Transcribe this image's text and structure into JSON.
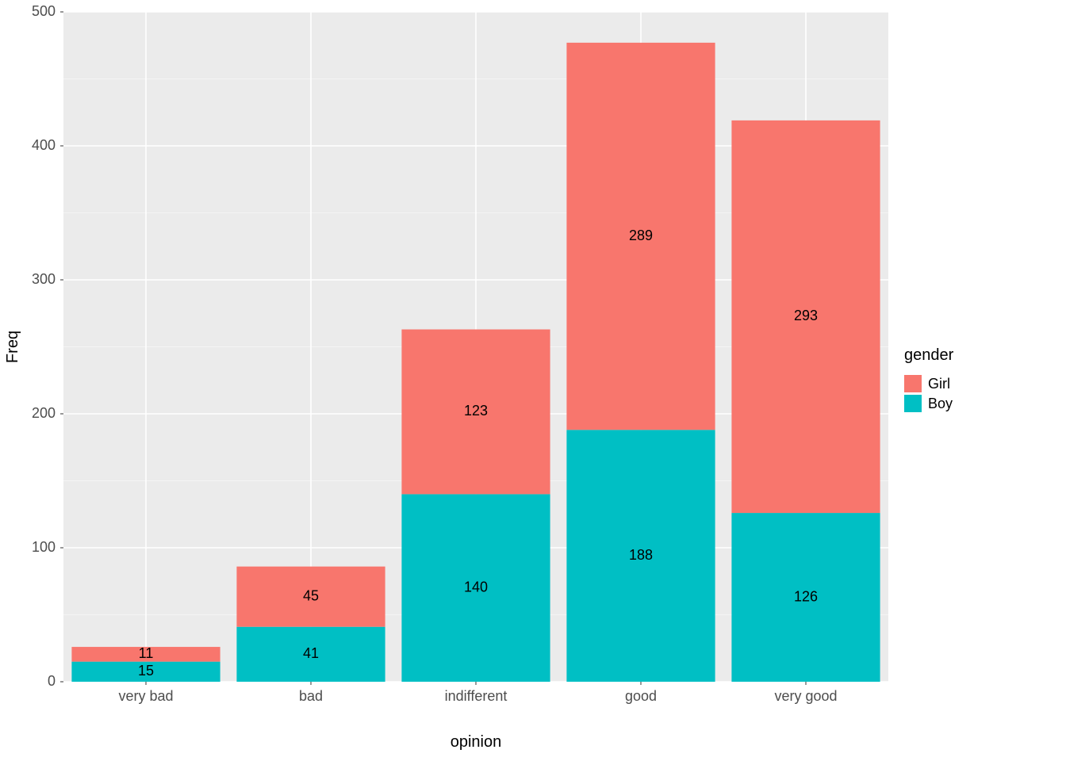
{
  "chart": {
    "type": "bar-stacked",
    "xlabel": "opinion",
    "ylabel": "Freq",
    "categories": [
      "very bad",
      "bad",
      "indifferent",
      "good",
      "very good"
    ],
    "series": [
      {
        "name": "Girl",
        "color": "#f8766d",
        "values": [
          11,
          45,
          123,
          289,
          293
        ]
      },
      {
        "name": "Boy",
        "color": "#00bfc4",
        "values": [
          15,
          41,
          140,
          188,
          126
        ]
      }
    ],
    "ylim": [
      0,
      500
    ],
    "yticks": [
      0,
      100,
      200,
      300,
      400,
      500
    ],
    "yminor": [
      50,
      150,
      250,
      350,
      450
    ],
    "panel_bg": "#ebebeb",
    "grid_major_color": "#ffffff",
    "grid_minor_color": "#f4f4f4",
    "axis_text_color": "#4d4d4d",
    "axis_title_color": "#000000",
    "tick_color": "#333333",
    "label_fontsize": 20,
    "tick_fontsize": 18,
    "value_fontsize": 18,
    "bar_width": 0.9,
    "plot_bg": "#ffffff"
  },
  "legend": {
    "title": "gender",
    "items": [
      {
        "label": "Girl",
        "color": "#f8766d"
      },
      {
        "label": "Boy",
        "color": "#00bfc4"
      }
    ],
    "swatch_bg": "#f2f2f2"
  }
}
